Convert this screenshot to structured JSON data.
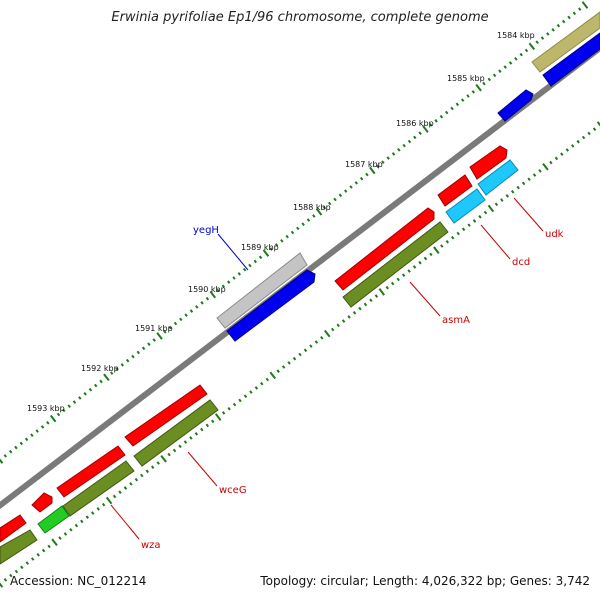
{
  "title": "Erwinia pyrifoliae Ep1/96 chromosome, complete genome",
  "footer": {
    "accession": "Accession: NC_012214",
    "summary": "Topology: circular; Length: 4,026,322 bp; Genes: 3,742"
  },
  "ticks": [
    "1584 kbp",
    "1585 kbp",
    "1586 kbp",
    "1587 kbp",
    "1588 kbp",
    "1589 kbp",
    "1590 kbp",
    "1591 kbp",
    "1592 kbp",
    "1593 kbp"
  ],
  "genes": [
    {
      "name": "yegH",
      "color": "#0000cc"
    },
    {
      "name": "udk",
      "color": "#cc0000"
    },
    {
      "name": "dcd",
      "color": "#cc0000"
    },
    {
      "name": "asmA",
      "color": "#cc0000"
    },
    {
      "name": "wceG",
      "color": "#cc0000"
    },
    {
      "name": "wza",
      "color": "#cc0000"
    }
  ],
  "colors": {
    "cds_red": "#ff0000",
    "gene_green": "#6b8e23",
    "forward_blue": "#0000ee",
    "cyan": "#1ec8ff",
    "gray": "#bdbdbd",
    "olive": "#bdb76b",
    "bright_green": "#22cc22",
    "tick_green": "#1f7a1f",
    "backbone": "#808080"
  }
}
